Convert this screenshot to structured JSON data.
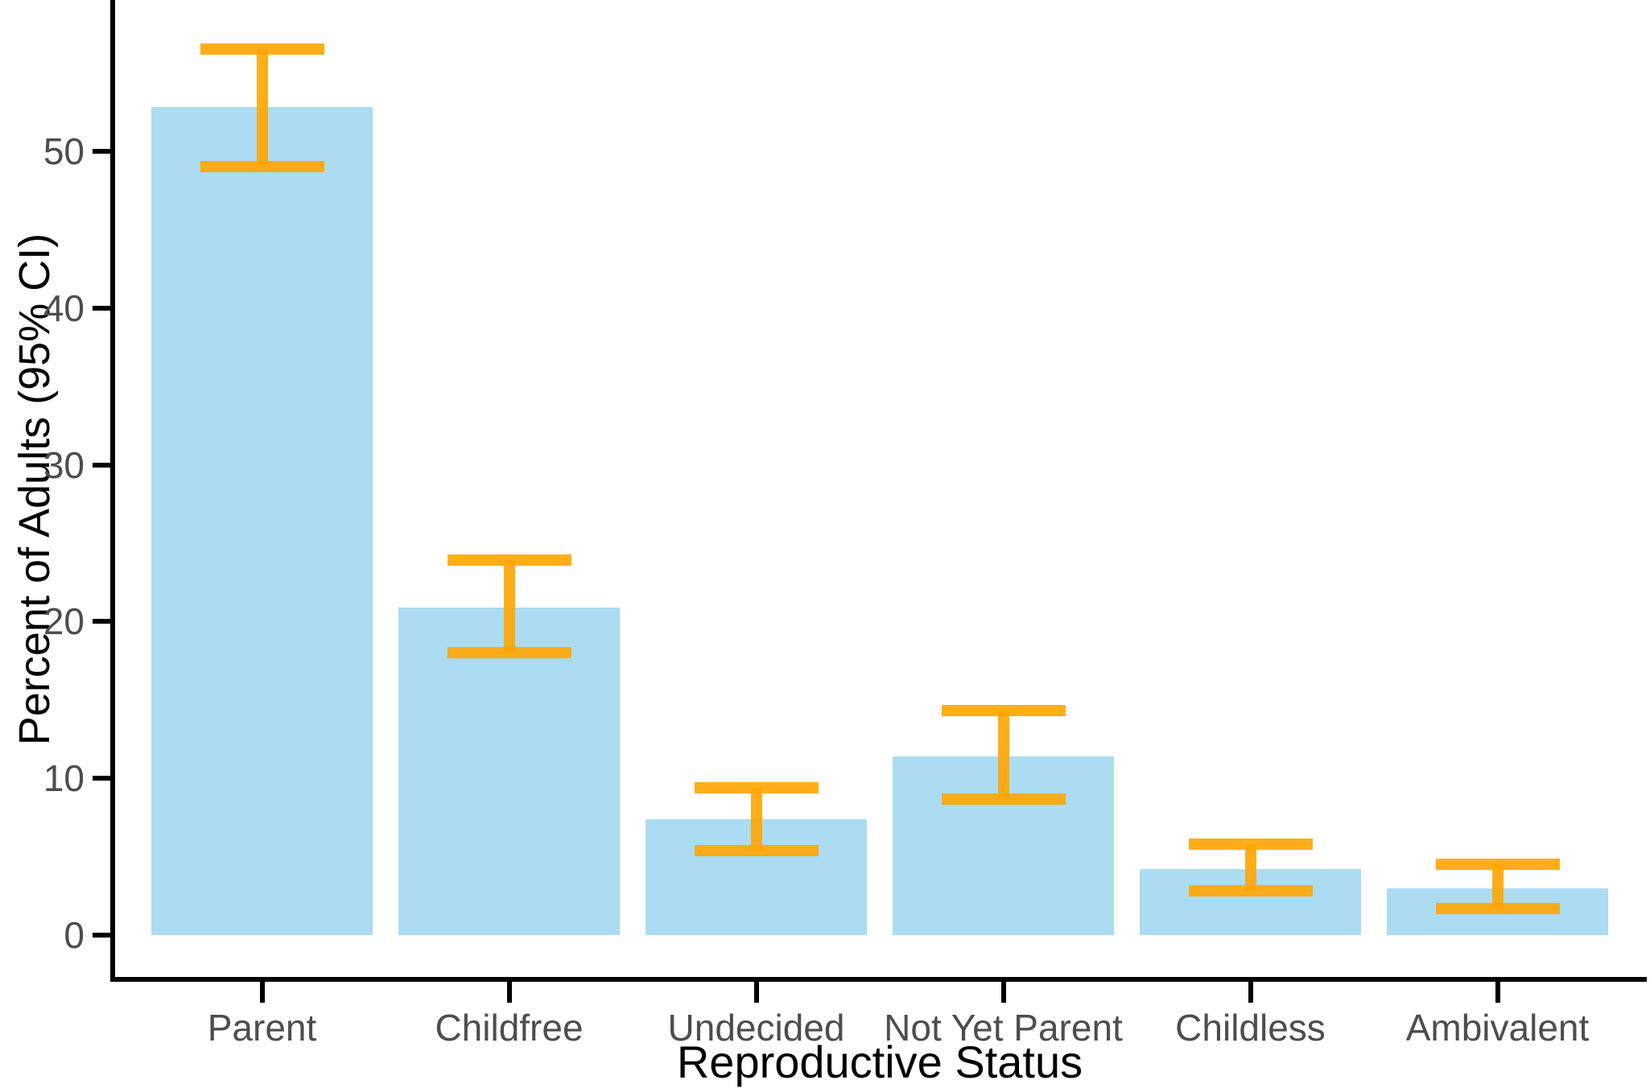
{
  "chart_data": {
    "type": "bar",
    "title": "",
    "xlabel": "Reproductive Status",
    "ylabel": "Percent of Adults (95% CI)",
    "categories": [
      "Parent",
      "Childfree",
      "Undecided",
      "Not Yet Parent",
      "Childless",
      "Ambivalent"
    ],
    "values": [
      52.8,
      20.9,
      7.4,
      11.4,
      4.2,
      3.0
    ],
    "ci_low": [
      49.0,
      18.0,
      5.4,
      8.7,
      2.8,
      1.7
    ],
    "ci_high": [
      56.5,
      23.9,
      9.4,
      14.3,
      5.8,
      4.5
    ],
    "yticks": [
      0,
      10,
      20,
      30,
      40,
      50
    ],
    "ylim": [
      0,
      59.6
    ],
    "grid": false,
    "legend_position": "none",
    "bar_color": "#abdcf1",
    "error_color": "rgba(255,165,0,0.9)",
    "axis_text_color": "#4d4d4d",
    "axis_line_color": "#000000"
  }
}
